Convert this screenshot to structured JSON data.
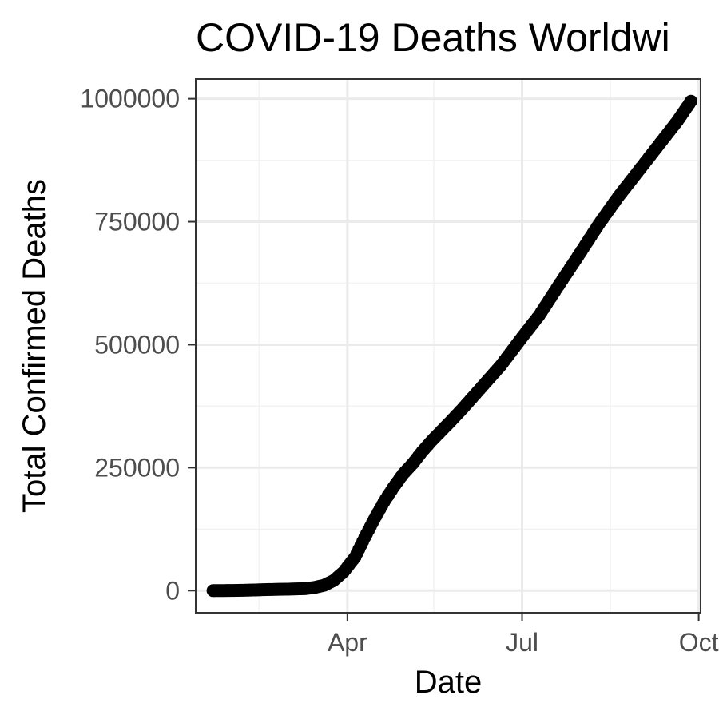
{
  "chart_data": {
    "type": "scatter",
    "title": "COVID-19 Deaths Worldwi",
    "xlabel": "Date",
    "ylabel": "Total Confirmed Deaths",
    "x_axis": {
      "type": "date",
      "range": [
        "2020-01-13",
        "2020-10-02"
      ],
      "ticks": [
        "2020-04-01",
        "2020-07-01",
        "2020-10-01"
      ],
      "tick_labels": [
        "Apr",
        "Jul",
        "Oct"
      ],
      "minor_ticks": [
        "2020-02-15",
        "2020-05-16",
        "2020-08-16"
      ]
    },
    "y_axis": {
      "range": [
        -45000,
        1040000
      ],
      "ticks": [
        0,
        250000,
        500000,
        750000,
        1000000
      ],
      "tick_labels": [
        "0",
        "250000",
        "500000",
        "750000",
        "1000000"
      ],
      "minor_ticks": [
        125000,
        375000,
        625000,
        875000
      ]
    },
    "grid": true,
    "series": [
      {
        "points": [
          [
            "2020-01-22",
            17
          ],
          [
            "2020-02-01",
            259
          ],
          [
            "2020-02-10",
            1013
          ],
          [
            "2020-02-20",
            2247
          ],
          [
            "2020-03-01",
            3000
          ],
          [
            "2020-03-10",
            4000
          ],
          [
            "2020-03-15",
            6500
          ],
          [
            "2020-03-20",
            11000
          ],
          [
            "2020-03-25",
            21000
          ],
          [
            "2020-03-30",
            38000
          ],
          [
            "2020-04-05",
            68000
          ],
          [
            "2020-04-10",
            108000
          ],
          [
            "2020-04-15",
            145000
          ],
          [
            "2020-04-20",
            180000
          ],
          [
            "2020-04-25",
            210000
          ],
          [
            "2020-04-30",
            237000
          ],
          [
            "2020-05-05",
            258000
          ],
          [
            "2020-05-10",
            283000
          ],
          [
            "2020-05-15",
            305000
          ],
          [
            "2020-05-20",
            325000
          ],
          [
            "2020-05-25",
            345000
          ],
          [
            "2020-05-31",
            370000
          ],
          [
            "2020-06-10",
            414000
          ],
          [
            "2020-06-20",
            458000
          ],
          [
            "2020-07-01",
            515000
          ],
          [
            "2020-07-10",
            560000
          ],
          [
            "2020-07-20",
            620000
          ],
          [
            "2020-07-31",
            685000
          ],
          [
            "2020-08-10",
            745000
          ],
          [
            "2020-08-20",
            800000
          ],
          [
            "2020-08-31",
            855000
          ],
          [
            "2020-09-10",
            905000
          ],
          [
            "2020-09-20",
            955000
          ],
          [
            "2020-09-27",
            995000
          ]
        ]
      }
    ]
  }
}
